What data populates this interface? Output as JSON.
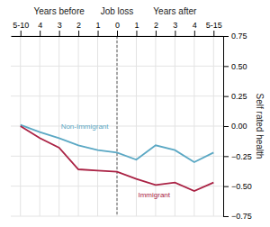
{
  "chart_data": {
    "type": "line",
    "categories": [
      "5-10",
      "4",
      "3",
      "2",
      "1",
      "0",
      "1",
      "2",
      "3",
      "4",
      "5-15"
    ],
    "series": [
      {
        "name": "Non-Immigrant",
        "color": "#5ba8c4",
        "values": [
          0.01,
          -0.05,
          -0.1,
          -0.16,
          -0.2,
          -0.22,
          -0.28,
          -0.16,
          -0.2,
          -0.3,
          -0.22
        ]
      },
      {
        "name": "Immigrant",
        "color": "#aa2244",
        "values": [
          0.0,
          -0.1,
          -0.18,
          -0.36,
          -0.37,
          -0.38,
          -0.44,
          -0.49,
          -0.47,
          -0.54,
          -0.47
        ]
      }
    ],
    "ylim": [
      -0.75,
      0.75
    ],
    "yticks": [
      {
        "value": -0.75,
        "label": "−0.75"
      },
      {
        "value": -0.5,
        "label": "−0.50"
      },
      {
        "value": -0.25,
        "label": "−0.25"
      },
      {
        "value": 0,
        "label": "0.00"
      },
      0.25,
      {
        "value": 0.5,
        "label": "0.50"
      },
      0.75
    ],
    "y_label": "Self rated health",
    "annotations": [
      {
        "text": "Years before"
      },
      {
        "text": "Job loss",
        "x": "0"
      },
      {
        "text": "Years after"
      }
    ],
    "grid": true
  }
}
